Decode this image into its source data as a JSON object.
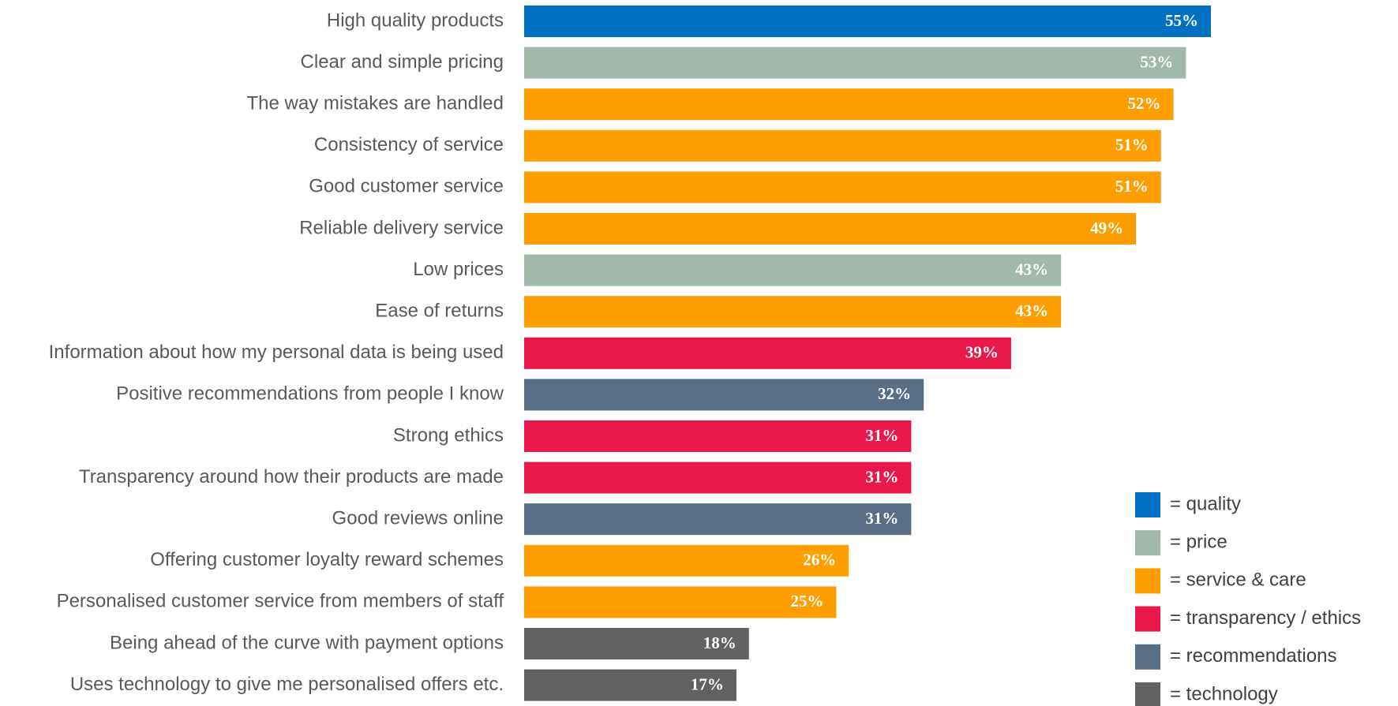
{
  "chart_data": {
    "type": "barh",
    "categories": [
      "High quality products",
      "Clear and simple pricing",
      "The way mistakes are handled",
      "Consistency of service",
      "Good customer service",
      "Reliable delivery service",
      "Low prices",
      "Ease of returns",
      "Information about how my personal data is being used",
      "Positive recommendations from people I know",
      "Strong ethics",
      "Transparency around how their products are made",
      "Good reviews online",
      "Offering customer loyalty reward schemes",
      "Personalised customer service from members of staff",
      "Being ahead of the curve with payment options",
      "Uses technology to give me personalised offers etc."
    ],
    "values": [
      55,
      53,
      52,
      51,
      51,
      49,
      43,
      43,
      39,
      32,
      31,
      31,
      31,
      26,
      25,
      18,
      17
    ],
    "value_labels": [
      "55%",
      "53%",
      "52%",
      "51%",
      "51%",
      "49%",
      "43%",
      "43%",
      "39%",
      "32%",
      "31%",
      "31%",
      "31%",
      "26%",
      "25%",
      "18%",
      "17%"
    ],
    "colors": [
      "#0070c0",
      "#a2b8ab",
      "#ff9e00",
      "#ff9e00",
      "#ff9e00",
      "#ff9e00",
      "#a2b8ab",
      "#ff9e00",
      "#e8194a",
      "#5a6d87",
      "#e8194a",
      "#e8194a",
      "#5a6d87",
      "#ff9e00",
      "#ff9e00",
      "#626262",
      "#626262"
    ],
    "xlim": [
      0,
      55
    ],
    "legend": [
      {
        "label": "= quality",
        "color": "#0070c0"
      },
      {
        "label": "= price",
        "color": "#a2b8ab"
      },
      {
        "label": "= service & care",
        "color": "#ff9e00"
      },
      {
        "label": "= transparency / ethics",
        "color": "#e8194a"
      },
      {
        "label": "= recommendations",
        "color": "#5a6d87"
      },
      {
        "label": "= technology",
        "color": "#626262"
      }
    ]
  }
}
